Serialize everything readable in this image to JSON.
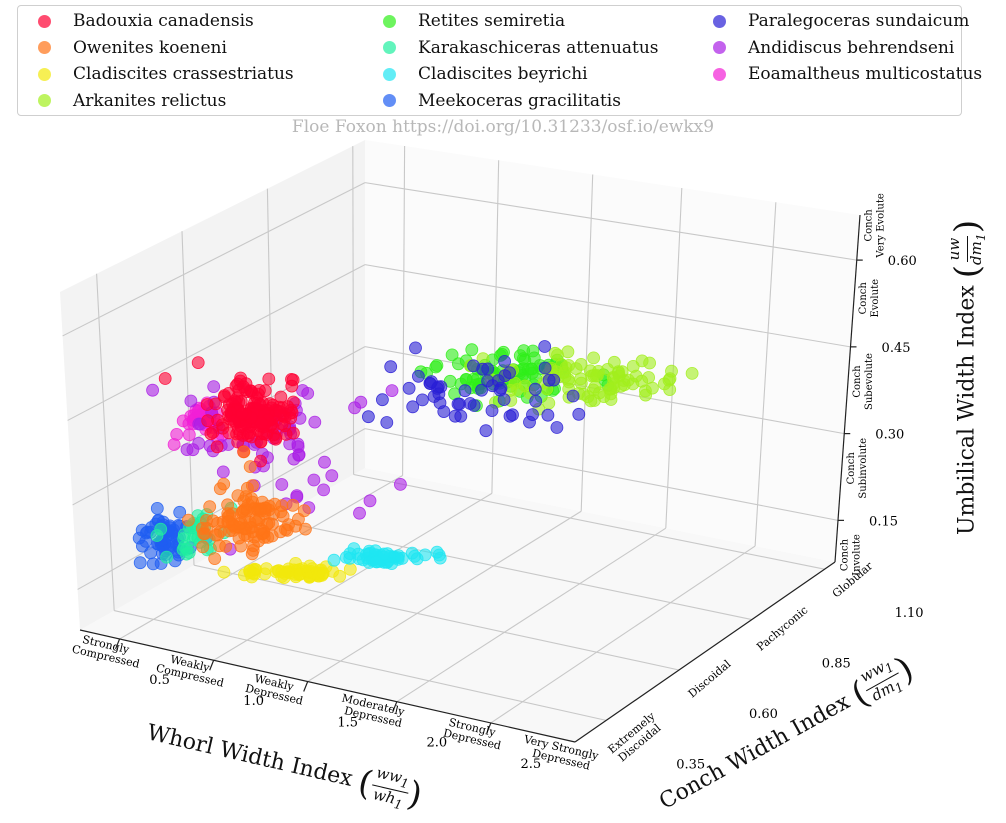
{
  "watermark": "Floe Foxon https://doi.org/10.31233/osf.io/ewkx9",
  "legend": [
    {
      "name": "Badouxia canadensis",
      "color": "#ff0033"
    },
    {
      "name": "Owenites koeneni",
      "color": "#ff7417"
    },
    {
      "name": "Cladiscites crassestriatus",
      "color": "#f2e80c"
    },
    {
      "name": "Arkanites relictus",
      "color": "#a2ef1d"
    },
    {
      "name": "Retites semiretia",
      "color": "#2fef19"
    },
    {
      "name": "Karakaschiceras attenuatus",
      "color": "#1fefa0"
    },
    {
      "name": "Cladiscites beyrichi",
      "color": "#1fe6f2"
    },
    {
      "name": "Meekoceras gracilitatis",
      "color": "#1f5ef2"
    },
    {
      "name": "Paralegoceras sundaicum",
      "color": "#2a1fd6"
    },
    {
      "name": "Andidiscus behrendseni",
      "color": "#aa1fe6"
    },
    {
      "name": "Eoamaltheus multicostatus",
      "color": "#f21fd6"
    }
  ],
  "axes": {
    "x": {
      "title": "Whorl Width Index",
      "frac_num": "ww",
      "frac_num_sub": "1",
      "frac_den": "wh",
      "frac_den_sub": "1",
      "ticks": [
        "0.5",
        "1.0",
        "1.5",
        "2.0",
        "2.5"
      ],
      "categories": [
        "Strongly Compressed",
        "Weakly Compressed",
        "Weakly Depressed",
        "Moderately Depressed",
        "Strongly Depressed",
        "Very Strongly Depressed"
      ]
    },
    "y": {
      "title": "Conch Width Index",
      "frac_num": "ww",
      "frac_num_sub": "1",
      "frac_den": "dm",
      "frac_den_sub": "1",
      "ticks": [
        "0.35",
        "0.60",
        "0.85",
        "1.10"
      ],
      "categories": [
        "Extremely Discoidal",
        "Discoidal",
        "Pachyconic",
        "Globular"
      ]
    },
    "z": {
      "title": "Umbilical Width Index",
      "frac_num": "uw",
      "frac_num_sub": "",
      "frac_den": "dm",
      "frac_den_sub": "1",
      "ticks": [
        "0.15",
        "0.30",
        "0.45",
        "0.60"
      ],
      "categories": [
        "Conch Involute",
        "Conch Subinvolute",
        "Conch Subevolute",
        "Conch Evolute",
        "Conch Very Evolute"
      ]
    }
  },
  "chart_data": {
    "type": "scatter",
    "subtype": "3d",
    "xlabel": "Whorl Width Index (ww1/wh1)",
    "ylabel": "Conch Width Index (ww1/dm1)",
    "zlabel": "Umbilical Width Index (uw/dm1)",
    "series": [
      {
        "name": "Badouxia canadensis",
        "centroid_screen_note": "cluster",
        "points_est": {
          "x": [
            0.85,
            0.9,
            0.8,
            0.95
          ],
          "y": [
            0.9,
            0.95,
            0.85,
            1.0
          ],
          "z": [
            0.42,
            0.45,
            0.4,
            0.47
          ]
        }
      },
      {
        "name": "Owenites koeneni",
        "points_est": {
          "x": [
            0.8,
            1.0,
            1.2
          ],
          "y": [
            0.5,
            0.55,
            0.6
          ],
          "z": [
            0.15,
            0.18,
            0.12
          ]
        }
      },
      {
        "name": "Cladiscites crassestriatus",
        "points_est": {
          "x": [
            1.2,
            1.4,
            1.5
          ],
          "y": [
            0.45,
            0.5,
            0.55
          ],
          "z": [
            0.02,
            0.03,
            0.02
          ]
        }
      },
      {
        "name": "Arkanites relictus",
        "points_est": {
          "x": [
            2.0,
            2.3,
            2.6
          ],
          "y": [
            0.9,
            1.0,
            1.1
          ],
          "z": [
            0.45,
            0.5,
            0.55
          ]
        }
      },
      {
        "name": "Retites semiretia",
        "points_est": {
          "x": [
            1.8,
            2.0,
            2.2
          ],
          "y": [
            0.95,
            1.0,
            1.05
          ],
          "z": [
            0.45,
            0.5,
            0.52
          ]
        }
      },
      {
        "name": "Karakaschiceras attenuatus",
        "points_est": {
          "x": [
            0.5,
            0.6
          ],
          "y": [
            0.4,
            0.45
          ],
          "z": [
            0.1,
            0.12
          ]
        }
      },
      {
        "name": "Cladiscites beyrichi",
        "points_est": {
          "x": [
            1.8,
            2.0,
            2.3
          ],
          "y": [
            0.35,
            0.4,
            0.45
          ],
          "z": [
            0.02,
            0.03,
            0.02
          ]
        }
      },
      {
        "name": "Meekoceras gracilitatis",
        "points_est": {
          "x": [
            0.4,
            0.5,
            0.6
          ],
          "y": [
            0.4,
            0.45,
            0.5
          ],
          "z": [
            0.1,
            0.12,
            0.15
          ]
        }
      },
      {
        "name": "Paralegoceras sundaicum",
        "points_est": {
          "x": [
            1.5,
            1.8,
            2.0
          ],
          "y": [
            0.95,
            1.0,
            1.05
          ],
          "z": [
            0.45,
            0.5,
            0.55
          ]
        }
      },
      {
        "name": "Andidiscus behrendseni",
        "points_est": {
          "x": [
            0.6,
            1.0,
            1.4
          ],
          "y": [
            0.6,
            0.8,
            1.0
          ],
          "z": [
            0.2,
            0.35,
            0.5
          ]
        }
      },
      {
        "name": "Eoamaltheus multicostatus",
        "points_est": {
          "x": [
            0.7,
            0.8
          ],
          "y": [
            0.9,
            0.95
          ],
          "z": [
            0.42,
            0.45
          ]
        }
      }
    ]
  }
}
